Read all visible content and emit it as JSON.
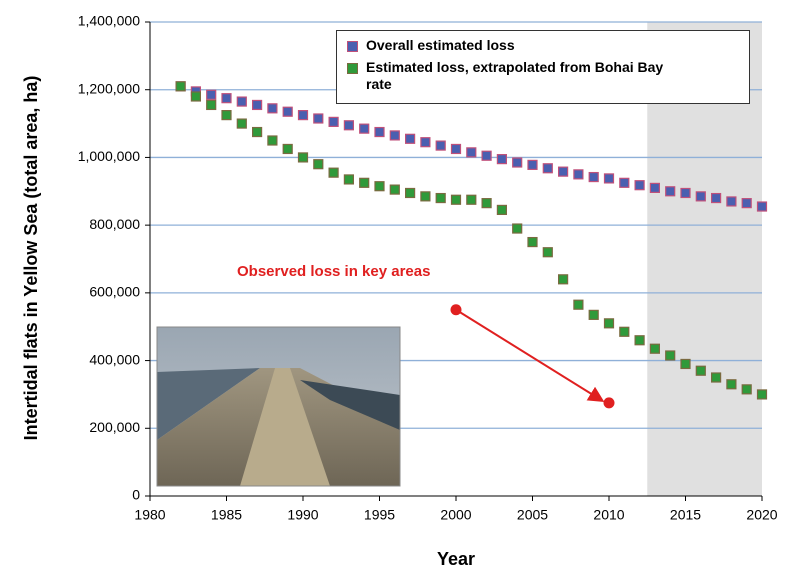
{
  "chart_data": {
    "type": "scatter",
    "x_label": "Year",
    "y_label": "Intertidal flats in Yellow Sea (total area, ha)",
    "xlim": [
      1980,
      2020
    ],
    "xticks": [
      1980,
      1985,
      1990,
      1995,
      2000,
      2005,
      2010,
      2015,
      2020
    ],
    "ylim": [
      0,
      1400000
    ],
    "yticks": [
      0,
      {
        "value": 200000,
        "label": "200,000"
      },
      {
        "value": 400000,
        "label": "400,000"
      },
      {
        "value": 600000,
        "label": "600,000"
      },
      {
        "value": 800000,
        "label": "800,000"
      },
      {
        "value": 1000000,
        "label": "1,000,000"
      },
      {
        "value": 1200000,
        "label": "1,200,000"
      },
      {
        "value": 1400000,
        "label": "1,400,000"
      }
    ],
    "grid": true,
    "forecast_region": [
      2012.5,
      2020
    ],
    "x": [
      1982,
      1983,
      1984,
      1985,
      1986,
      1987,
      1988,
      1989,
      1990,
      1991,
      1992,
      1993,
      1994,
      1995,
      1996,
      1997,
      1998,
      1999,
      2000,
      2001,
      2002,
      2003,
      2004,
      2005,
      2006,
      2007,
      2008,
      2009,
      2010,
      2011,
      2012,
      2013,
      2014,
      2015,
      2016,
      2017,
      2018,
      2019,
      2020
    ],
    "series": [
      {
        "name": "Overall estimated loss",
        "color": "#4a5fb0",
        "edge": "#c0507a",
        "values": [
          1210000,
          1195000,
          1185000,
          1175000,
          1165000,
          1155000,
          1145000,
          1135000,
          1125000,
          1115000,
          1105000,
          1095000,
          1085000,
          1075000,
          1065000,
          1055000,
          1045000,
          1035000,
          1025000,
          1015000,
          1005000,
          995000,
          985000,
          978000,
          968000,
          958000,
          950000,
          942000,
          938000,
          925000,
          918000,
          910000,
          900000,
          895000,
          885000,
          880000,
          870000,
          865000,
          855000
        ]
      },
      {
        "name": "Estimated loss, extrapolated from Bohai Bay rate",
        "color": "#2f9a3a",
        "edge": "#7a6a40",
        "values": [
          1210000,
          1180000,
          1155000,
          1125000,
          1100000,
          1075000,
          1050000,
          1025000,
          1000000,
          980000,
          955000,
          935000,
          925000,
          915000,
          905000,
          895000,
          885000,
          880000,
          875000,
          875000,
          865000,
          845000,
          790000,
          750000,
          720000,
          640000,
          565000,
          535000,
          510000,
          485000,
          460000,
          435000,
          415000,
          390000,
          370000,
          350000,
          330000,
          315000,
          300000
        ]
      }
    ],
    "observed": {
      "label": "Observed loss in key areas",
      "color": "#e02020",
      "x": [
        2000,
        2010
      ],
      "values": [
        550000,
        275000
      ]
    }
  }
}
